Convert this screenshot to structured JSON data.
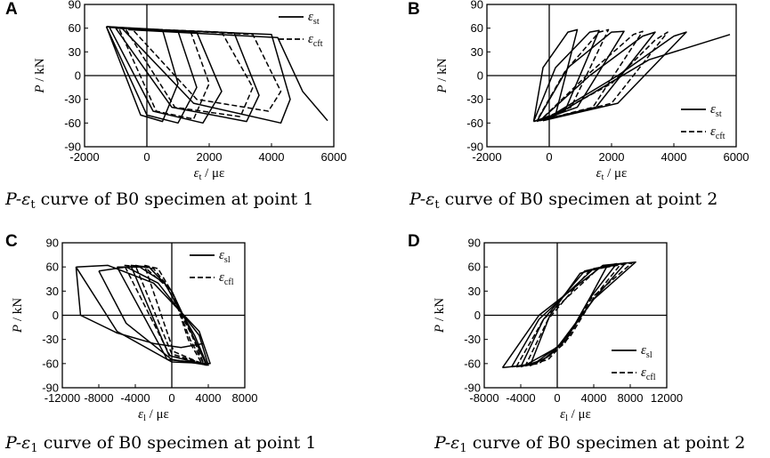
{
  "figure": {
    "panels": [
      {
        "letter": "A",
        "caption": {
          "prefix": "P-",
          "symbol": "ε",
          "sub": "t",
          "rest": " curve of B0 specimen at point 1"
        },
        "xlabel": {
          "var": "ε",
          "sub": "t",
          "unit": " / με"
        },
        "ylabel": {
          "var": "P",
          "unit": " / kN"
        },
        "legend": [
          {
            "var": "ε",
            "sub": "st",
            "style": "solid"
          },
          {
            "var": "ε",
            "sub": "cft",
            "style": "dashed"
          }
        ],
        "legend_pos": "top-right"
      },
      {
        "letter": "B",
        "caption": {
          "prefix": "P-",
          "symbol": "ε",
          "sub": "t",
          "rest": " curve of B0 specimen at point 2"
        },
        "xlabel": {
          "var": "ε",
          "sub": "t",
          "unit": " / με"
        },
        "ylabel": {
          "var": "P",
          "unit": " / kN"
        },
        "legend": [
          {
            "var": "ε",
            "sub": "st",
            "style": "solid"
          },
          {
            "var": "ε",
            "sub": "cft",
            "style": "dashed"
          }
        ],
        "legend_pos": "bottom-right"
      },
      {
        "letter": "C",
        "caption": {
          "prefix": "P-",
          "symbol": "ε",
          "sub": "1",
          "rest": " curve of B0 specimen at point 1"
        },
        "xlabel": {
          "var": "ε",
          "sub": "l",
          "unit": " / με"
        },
        "ylabel": {
          "var": "P",
          "unit": " / kN"
        },
        "legend": [
          {
            "var": "ε",
            "sub": "sl",
            "style": "solid"
          },
          {
            "var": "ε",
            "sub": "cfl",
            "style": "dashed"
          }
        ],
        "legend_pos": "top-right"
      },
      {
        "letter": "D",
        "caption": {
          "prefix": "P-",
          "symbol": "ε",
          "sub": "1",
          "rest": " curve of B0 specimen at point 2"
        },
        "xlabel": {
          "var": "ε",
          "sub": "l",
          "unit": " / με"
        },
        "ylabel": {
          "var": "P",
          "unit": " / kN"
        },
        "legend": [
          {
            "var": "ε",
            "sub": "sl",
            "style": "solid"
          },
          {
            "var": "ε",
            "sub": "cfl",
            "style": "dashed"
          }
        ],
        "legend_pos": "bottom-right"
      }
    ]
  },
  "chart_data": [
    {
      "type": "line",
      "panel": "A",
      "xlim": [
        -2000,
        6000
      ],
      "ylim": [
        -90,
        90
      ],
      "xticks": [
        -2000,
        0,
        2000,
        4000,
        6000
      ],
      "yticks": [
        -90,
        -60,
        -30,
        0,
        30,
        60,
        90
      ],
      "xtick_labels": [
        "-2000",
        "0",
        "2000",
        "4000",
        "6000"
      ],
      "ytick_labels": [
        "-90",
        "-60",
        "-30",
        "0",
        "30",
        "60",
        "90"
      ],
      "series": [
        {
          "name": "ε_st",
          "style": "solid",
          "loops": [
            {
              "x": [
                -1300,
                500,
                1000,
                500,
                -200,
                -1300
              ],
              "y": [
                62,
                58,
                -10,
                -58,
                -50,
                62
              ]
            },
            {
              "x": [
                -1300,
                1000,
                1600,
                1000,
                0,
                -1300
              ],
              "y": [
                62,
                56,
                -15,
                -60,
                -50,
                62
              ]
            },
            {
              "x": [
                -1200,
                1600,
                2400,
                1800,
                200,
                -1200
              ],
              "y": [
                61,
                55,
                -20,
                -60,
                -45,
                61
              ]
            },
            {
              "x": [
                -1000,
                2800,
                3600,
                3200,
                800,
                -1000
              ],
              "y": [
                60,
                54,
                -25,
                -58,
                -40,
                60
              ]
            },
            {
              "x": [
                -800,
                4000,
                4600,
                4300,
                1500,
                -800
              ],
              "y": [
                60,
                52,
                -30,
                -60,
                -35,
                60
              ]
            },
            {
              "x": [
                -600,
                4200,
                5000,
                5800
              ],
              "y": [
                58,
                48,
                -20,
                -57
              ]
            }
          ]
        },
        {
          "name": "ε_cft",
          "style": "dashed",
          "loops": [
            {
              "x": [
                -900,
                1400,
                2000,
                1500,
                300,
                -900
              ],
              "y": [
                60,
                56,
                -10,
                -55,
                -45,
                60
              ]
            },
            {
              "x": [
                -700,
                2400,
                3400,
                3000,
                900,
                -700
              ],
              "y": [
                60,
                55,
                -15,
                -52,
                -40,
                60
              ]
            },
            {
              "x": [
                -500,
                3400,
                4300,
                3900,
                1600,
                -500
              ],
              "y": [
                60,
                52,
                -20,
                -45,
                -30,
                60
              ]
            }
          ]
        }
      ]
    },
    {
      "type": "line",
      "panel": "B",
      "xlim": [
        -2000,
        6000
      ],
      "ylim": [
        -90,
        90
      ],
      "xticks": [
        -2000,
        0,
        2000,
        4000,
        6000
      ],
      "yticks": [
        -90,
        -60,
        -30,
        0,
        30,
        60,
        90
      ],
      "xtick_labels": [
        "-2000",
        "0",
        "2000",
        "4000",
        "6000"
      ],
      "ytick_labels": [
        "-90",
        "-60",
        "-30",
        "0",
        "30",
        "60",
        "90"
      ],
      "series": [
        {
          "name": "ε_st",
          "style": "solid",
          "loops": [
            {
              "x": [
                -500,
                200,
                900,
                600,
                -200,
                -500
              ],
              "y": [
                -58,
                -50,
                58,
                55,
                10,
                -58
              ]
            },
            {
              "x": [
                -500,
                500,
                1600,
                1300,
                200,
                -500
              ],
              "y": [
                -58,
                -45,
                57,
                55,
                10,
                -58
              ]
            },
            {
              "x": [
                -400,
                900,
                2400,
                2000,
                600,
                -400
              ],
              "y": [
                -58,
                -40,
                56,
                55,
                10,
                -58
              ]
            },
            {
              "x": [
                -300,
                1500,
                3400,
                3000,
                1300,
                -300
              ],
              "y": [
                -57,
                -40,
                55,
                50,
                0,
                -57
              ]
            },
            {
              "x": [
                -200,
                2200,
                4400,
                4000,
                2200,
                -200
              ],
              "y": [
                -57,
                -35,
                55,
                50,
                0,
                -57
              ]
            },
            {
              "x": [
                0,
                3200,
                5800
              ],
              "y": [
                -55,
                20,
                52
              ]
            }
          ]
        },
        {
          "name": "ε_cft",
          "style": "dashed",
          "loops": [
            {
              "x": [
                -400,
                700,
                1900,
                1600,
                500,
                -400
              ],
              "y": [
                -57,
                -40,
                58,
                55,
                5,
                -57
              ]
            },
            {
              "x": [
                -300,
                1400,
                3000,
                2700,
                1200,
                -300
              ],
              "y": [
                -57,
                -40,
                56,
                52,
                0,
                -57
              ]
            },
            {
              "x": [
                -200,
                2000,
                3800,
                3400,
                2000,
                -200
              ],
              "y": [
                -57,
                -35,
                55,
                45,
                -10,
                -57
              ]
            }
          ]
        }
      ]
    },
    {
      "type": "line",
      "panel": "C",
      "xlim": [
        -12000,
        8000
      ],
      "ylim": [
        -90,
        90
      ],
      "xticks": [
        -12000,
        -8000,
        -4000,
        0,
        4000,
        8000
      ],
      "yticks": [
        -90,
        -60,
        -30,
        0,
        30,
        60,
        90
      ],
      "xtick_labels": [
        "-12000",
        "-8000",
        "-4000",
        "0",
        "4000",
        "8000"
      ],
      "ytick_labels": [
        "-90",
        "-60",
        "-30",
        "0",
        "30",
        "60",
        "90"
      ],
      "series": [
        {
          "name": "ε_sl",
          "style": "solid",
          "loops": [
            {
              "x": [
                -10500,
                -7000,
                -2000,
                3000,
                4200,
                0,
                -6000,
                -10500
              ],
              "y": [
                60,
                62,
                40,
                -20,
                -60,
                -58,
                -20,
                60
              ]
            },
            {
              "x": [
                -8000,
                -5000,
                -1500,
                3000,
                4000,
                0,
                -5000,
                -8000
              ],
              "y": [
                55,
                60,
                40,
                -25,
                -62,
                -55,
                -10,
                55
              ]
            },
            {
              "x": [
                -6000,
                -3500,
                -800,
                2500,
                3800,
                -500,
                -6000
              ],
              "y": [
                60,
                60,
                40,
                -25,
                -60,
                -55,
                60
              ]
            },
            {
              "x": [
                -4500,
                -2500,
                0,
                2500,
                3800,
                -300,
                -4500
              ],
              "y": [
                62,
                60,
                30,
                -30,
                -62,
                -50,
                62
              ]
            },
            {
              "x": [
                -10500,
                -10000,
                -6000,
                -2000,
                1000,
                3500
              ],
              "y": [
                60,
                0,
                -22,
                -35,
                -40,
                -35
              ]
            }
          ]
        },
        {
          "name": "ε_cfl",
          "style": "dashed",
          "loops": [
            {
              "x": [
                -5200,
                -3000,
                -500,
                2200,
                3500,
                -200,
                -5200
              ],
              "y": [
                62,
                60,
                35,
                -25,
                -60,
                -50,
                62
              ]
            },
            {
              "x": [
                -4000,
                -2000,
                0,
                2000,
                3500,
                0,
                -4000
              ],
              "y": [
                62,
                58,
                30,
                -30,
                -60,
                -48,
                62
              ]
            },
            {
              "x": [
                -3000,
                -1500,
                200,
                1800,
                3300,
                200,
                -3000
              ],
              "y": [
                62,
                58,
                25,
                -30,
                -60,
                -45,
                62
              ]
            }
          ]
        }
      ]
    },
    {
      "type": "line",
      "panel": "D",
      "xlim": [
        -8000,
        12000
      ],
      "ylim": [
        -90,
        90
      ],
      "xticks": [
        -8000,
        -4000,
        0,
        4000,
        8000,
        12000
      ],
      "yticks": [
        -90,
        -60,
        -30,
        0,
        30,
        60,
        90
      ],
      "xtick_labels": [
        "-8000",
        "-4000",
        "0",
        "4000",
        "8000",
        "12000"
      ],
      "ytick_labels": [
        "-90",
        "-60",
        "-30",
        "0",
        "30",
        "60",
        "90"
      ],
      "series": [
        {
          "name": "ε_sl",
          "style": "solid",
          "loops": [
            {
              "x": [
                -6000,
                -3500,
                0,
                4000,
                8600,
                5000,
                -2000,
                -6000
              ],
              "y": [
                -65,
                -62,
                -40,
                20,
                66,
                62,
                0,
                -65
              ]
            },
            {
              "x": [
                -5000,
                -2500,
                500,
                4000,
                7500,
                4000,
                -2000,
                -5000
              ],
              "y": [
                -64,
                -60,
                -35,
                20,
                65,
                58,
                -5,
                -64
              ]
            },
            {
              "x": [
                -4000,
                -1500,
                1000,
                3500,
                6500,
                3000,
                -1500,
                -4000
              ],
              "y": [
                -64,
                -55,
                -30,
                20,
                64,
                55,
                -5,
                -64
              ]
            },
            {
              "x": [
                -3000,
                -800,
                1500,
                3500,
                5500,
                2500,
                -800,
                -3000
              ],
              "y": [
                -63,
                -50,
                -20,
                20,
                62,
                52,
                0,
                -63
              ]
            }
          ]
        },
        {
          "name": "ε_cfl",
          "style": "dashed",
          "loops": [
            {
              "x": [
                -4500,
                -2000,
                800,
                3800,
                8200,
                4500,
                -1500,
                -4500
              ],
              "y": [
                -64,
                -60,
                -35,
                22,
                65,
                58,
                -5,
                -64
              ]
            },
            {
              "x": [
                -3500,
                -1000,
                1500,
                4000,
                7000,
                3500,
                -1000,
                -3500
              ],
              "y": [
                -63,
                -55,
                -25,
                22,
                64,
                55,
                -5,
                -63
              ]
            }
          ]
        }
      ]
    }
  ]
}
